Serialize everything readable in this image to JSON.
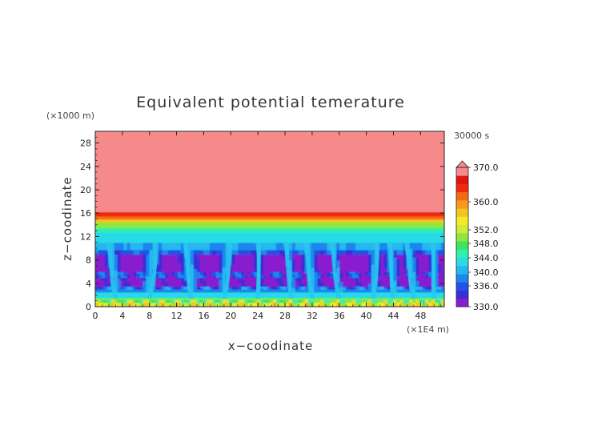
{
  "chart_data": {
    "type": "heatmap",
    "title": "Equivalent potential temerature",
    "xlabel": "x−coodinate",
    "ylabel": "z−coodinate",
    "x_unit": "(×1E4 m)",
    "y_unit": "(×1000 m)",
    "time_label": "30000 s",
    "xlim": [
      0,
      51.5
    ],
    "ylim": [
      0,
      30
    ],
    "x_ticks": [
      0,
      4,
      8,
      12,
      16,
      20,
      24,
      28,
      32,
      36,
      40,
      44,
      48
    ],
    "y_ticks": [
      0,
      4,
      8,
      12,
      16,
      20,
      24,
      28
    ],
    "grid": false,
    "colorbar": {
      "position": "right",
      "label_values": [
        "370.0",
        "360.0",
        "352.0",
        "348.0",
        "344.0",
        "340.0",
        "336.0",
        "330.0"
      ],
      "levels": [
        330,
        334,
        336,
        338,
        340,
        342,
        344,
        346,
        348,
        350,
        352,
        354,
        356,
        360,
        364,
        368,
        370
      ],
      "colors": [
        "#8a1ccf",
        "#3a2fd6",
        "#1f54e6",
        "#1e86ee",
        "#25b6f0",
        "#28dbe6",
        "#2ff0b0",
        "#3ce65a",
        "#8ee640",
        "#d4ea34",
        "#f4ea28",
        "#f6c21f",
        "#f79a1c",
        "#f46a14",
        "#ee2a0e",
        "#dd1414",
        "#f68a8a"
      ],
      "extend_max": true
    },
    "field_description_levels": [
      {
        "z_range": [
          16,
          30
        ],
        "theta_e": 370
      },
      {
        "z_range": [
          15,
          16
        ],
        "theta_e": 362
      },
      {
        "z_range": [
          13,
          15
        ],
        "theta_e": 348
      },
      {
        "z_range": [
          10,
          13
        ],
        "theta_e": 341
      },
      {
        "z_range": [
          6,
          9
        ],
        "theta_e": 332
      },
      {
        "z_range": [
          0,
          1.5
        ],
        "theta_e": 350
      }
    ],
    "plumes_x": [
      3,
      8,
      14.2,
      19,
      24,
      29,
      32,
      36,
      41,
      44,
      47,
      50
    ]
  }
}
